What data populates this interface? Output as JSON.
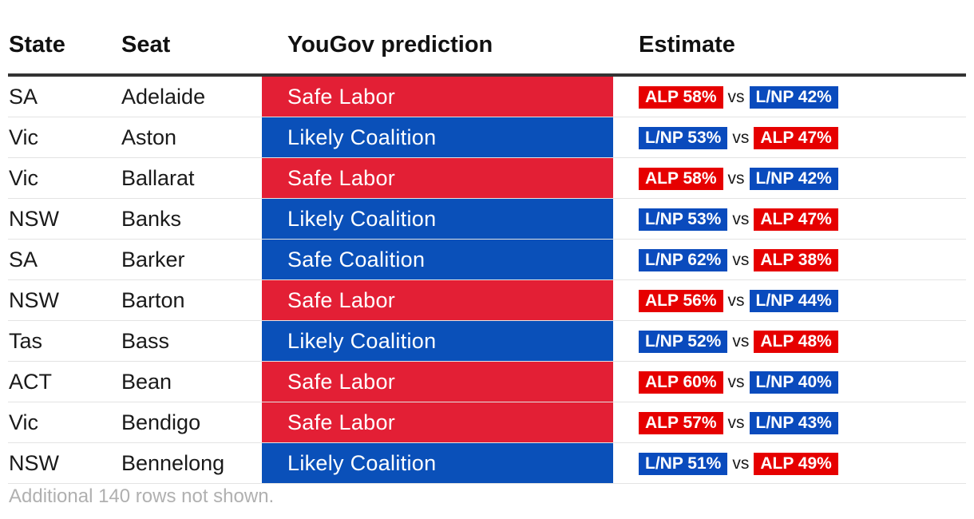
{
  "colors": {
    "labor": "#e31f35",
    "coalition": "#0a50b9",
    "alp_pill": "#e60000",
    "lnp_pill": "#0a4bbd"
  },
  "headers": {
    "state": "State",
    "seat": "Seat",
    "prediction": "YouGov prediction",
    "estimate": "Estimate"
  },
  "vs_label": "vs",
  "rows": [
    {
      "state": "SA",
      "seat": "Adelaide",
      "prediction": "Safe Labor",
      "party": "labor",
      "first": "ALP 58%",
      "second": "L/NP 42%"
    },
    {
      "state": "Vic",
      "seat": "Aston",
      "prediction": "Likely Coalition",
      "party": "coalition",
      "first": "L/NP 53%",
      "second": "ALP 47%"
    },
    {
      "state": "Vic",
      "seat": "Ballarat",
      "prediction": "Safe Labor",
      "party": "labor",
      "first": "ALP 58%",
      "second": "L/NP 42%"
    },
    {
      "state": "NSW",
      "seat": "Banks",
      "prediction": "Likely Coalition",
      "party": "coalition",
      "first": "L/NP 53%",
      "second": "ALP 47%"
    },
    {
      "state": "SA",
      "seat": "Barker",
      "prediction": "Safe Coalition",
      "party": "coalition",
      "first": "L/NP 62%",
      "second": "ALP 38%"
    },
    {
      "state": "NSW",
      "seat": "Barton",
      "prediction": "Safe Labor",
      "party": "labor",
      "first": "ALP 56%",
      "second": "L/NP 44%"
    },
    {
      "state": "Tas",
      "seat": "Bass",
      "prediction": "Likely Coalition",
      "party": "coalition",
      "first": "L/NP 52%",
      "second": "ALP 48%"
    },
    {
      "state": "ACT",
      "seat": "Bean",
      "prediction": "Safe Labor",
      "party": "labor",
      "first": "ALP 60%",
      "second": "L/NP 40%"
    },
    {
      "state": "Vic",
      "seat": "Bendigo",
      "prediction": "Safe Labor",
      "party": "labor",
      "first": "ALP 57%",
      "second": "L/NP 43%"
    },
    {
      "state": "NSW",
      "seat": "Bennelong",
      "prediction": "Likely Coalition",
      "party": "coalition",
      "first": "L/NP 51%",
      "second": "ALP 49%"
    }
  ],
  "footnote": "Additional 140 rows not shown."
}
